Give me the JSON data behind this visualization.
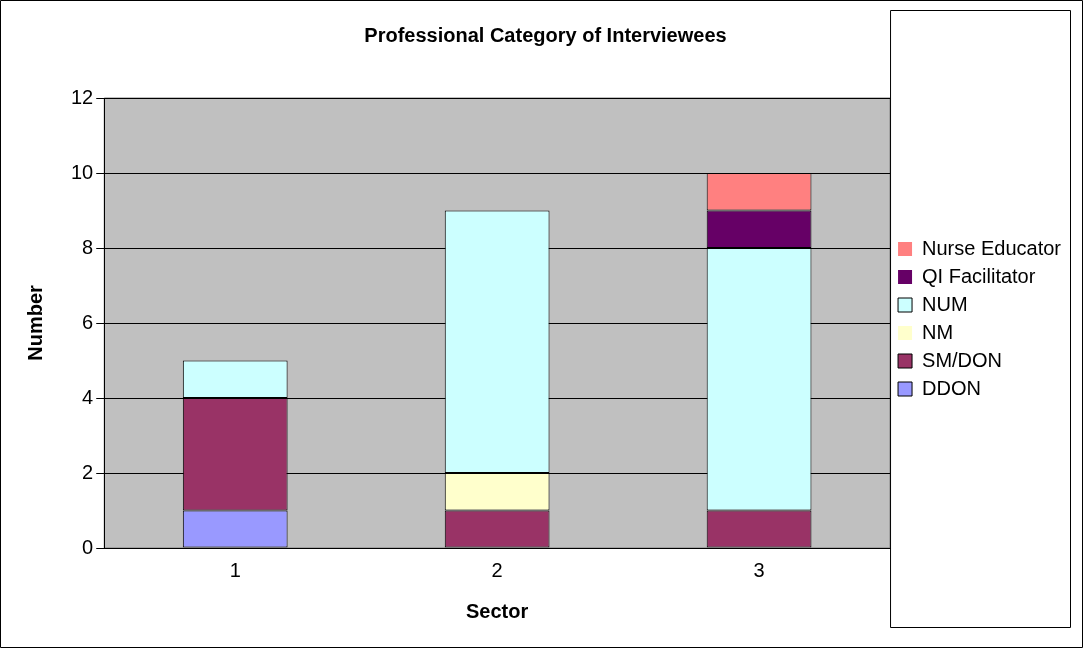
{
  "chart_data": {
    "type": "bar",
    "title": "Professional Category of Interviewees",
    "xlabel": "Sector",
    "ylabel": "Number",
    "categories": [
      "1",
      "2",
      "3"
    ],
    "stacked": true,
    "series": [
      {
        "name": "DDON",
        "color": "#9999ff",
        "values": [
          1,
          0,
          0
        ]
      },
      {
        "name": "SM/DON",
        "color": "#993366",
        "values": [
          3,
          1,
          1
        ]
      },
      {
        "name": "NM",
        "color": "#ffffcc",
        "values": [
          0,
          1,
          0
        ]
      },
      {
        "name": "NUM",
        "color": "#ccffff",
        "values": [
          1,
          7,
          7
        ]
      },
      {
        "name": "QI Facilitator",
        "color": "#660066",
        "values": [
          0,
          0,
          1
        ]
      },
      {
        "name": "Nurse Educator",
        "color": "#ff8080",
        "values": [
          0,
          0,
          1
        ]
      }
    ],
    "ylim": [
      0,
      12
    ],
    "yticks": [
      0,
      2,
      4,
      6,
      8,
      10,
      12
    ],
    "grid": "y",
    "legend": "right"
  }
}
